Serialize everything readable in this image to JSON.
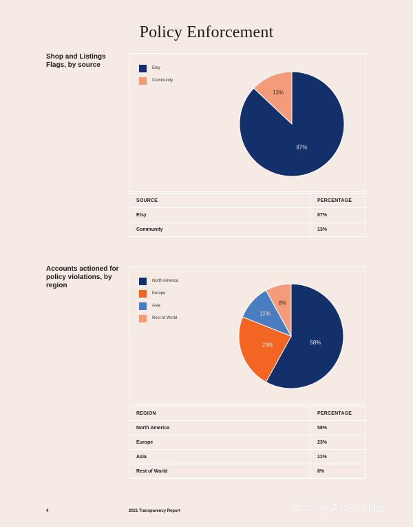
{
  "page": {
    "title": "Policy Enforcement"
  },
  "section1": {
    "label": "Shop and Listings Flags, by source",
    "table": {
      "headers": [
        "SOURCE",
        "PERCENTAGE"
      ],
      "rows": [
        [
          "Etsy",
          "87%"
        ],
        [
          "Community",
          "13%"
        ]
      ]
    }
  },
  "section2": {
    "label": "Accounts actioned for policy violations, by region",
    "table": {
      "headers": [
        "REGION",
        "PERCENTAGE"
      ],
      "rows": [
        [
          "North America",
          "58%"
        ],
        [
          "Europe",
          "23%"
        ],
        [
          "Asia",
          "11%"
        ],
        [
          "Rest of World",
          "8%"
        ]
      ]
    }
  },
  "footer": {
    "page_number": "4",
    "report_title": "2021 Transparency Report"
  },
  "watermark": "知乎 @跨境小灯塔",
  "chart_data": [
    {
      "type": "pie",
      "categories": [
        "Etsy",
        "Community"
      ],
      "values": [
        87,
        13
      ],
      "labels": [
        "87%",
        "13%"
      ],
      "colors": [
        "#13306b",
        "#f49c79"
      ],
      "legend_placement": "top-left"
    },
    {
      "type": "pie",
      "categories": [
        "North America",
        "Europe",
        "Asia",
        "Rest of World"
      ],
      "values": [
        58,
        23,
        11,
        8
      ],
      "labels": [
        "58%",
        "23%",
        "11%",
        "8%"
      ],
      "colors": [
        "#13306b",
        "#f26522",
        "#4a7cc0",
        "#f49c79"
      ],
      "legend_placement": "top-left"
    }
  ]
}
